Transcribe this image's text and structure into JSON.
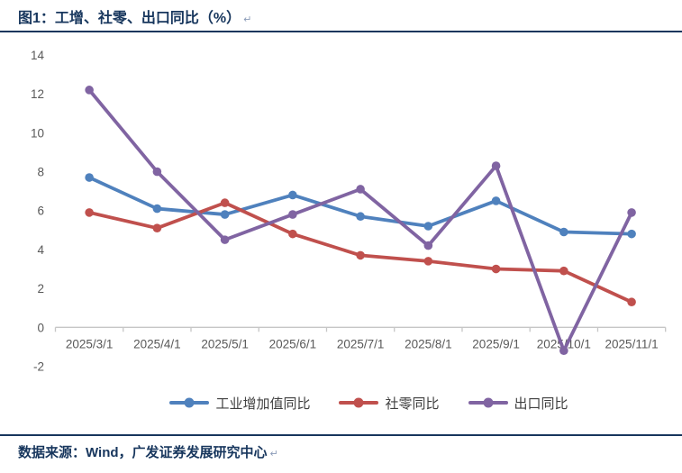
{
  "header": {
    "title": "图1：工增、社零、出口同比（%）",
    "return_mark": "↵"
  },
  "footer": {
    "text": "数据来源：Wind，广发证券发展研究中心",
    "return_mark": "↵"
  },
  "colors": {
    "accent": "#17365D",
    "axis": "#C6C6C6",
    "tick_label": "#595959",
    "legend_text": "#3F3F3F"
  },
  "chart_data": {
    "type": "line",
    "title": "图1：工增、社零、出口同比（%）",
    "xlabel": "",
    "ylabel": "",
    "categories": [
      "2025/3/1",
      "2025/4/1",
      "2025/5/1",
      "2025/6/1",
      "2025/7/1",
      "2025/8/1",
      "2025/9/1",
      "2025/10/1",
      "2025/11/1"
    ],
    "series": [
      {
        "name": "工业增加值同比",
        "color": "#4F81BD",
        "values": [
          7.7,
          6.1,
          5.8,
          6.8,
          5.7,
          5.2,
          6.5,
          4.9,
          4.8
        ]
      },
      {
        "name": "社零同比",
        "color": "#C0504D",
        "values": [
          5.9,
          5.1,
          6.4,
          4.8,
          3.7,
          3.4,
          3.0,
          2.9,
          1.3
        ]
      },
      {
        "name": "出口同比",
        "color": "#8064A2",
        "values": [
          12.2,
          8.0,
          4.5,
          5.8,
          7.1,
          4.2,
          8.3,
          -1.2,
          5.9
        ]
      }
    ],
    "ylim": [
      -2,
      14
    ],
    "yticks": [
      -2,
      0,
      2,
      4,
      6,
      8,
      10,
      12,
      14
    ],
    "grid": false,
    "legend_position": "bottom",
    "marker": "circle"
  }
}
